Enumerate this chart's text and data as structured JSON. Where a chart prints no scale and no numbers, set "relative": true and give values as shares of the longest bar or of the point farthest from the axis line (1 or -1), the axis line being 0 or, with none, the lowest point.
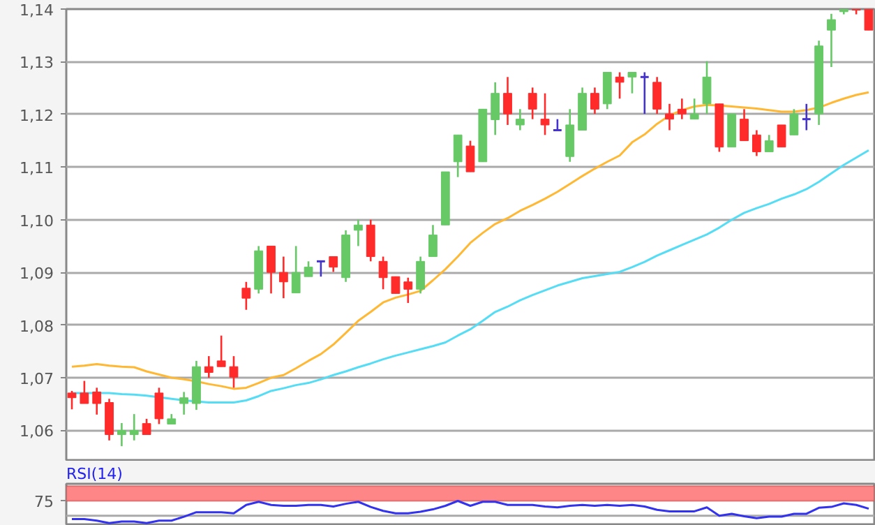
{
  "chart_data": [
    {
      "type": "candlestick",
      "categories": [
        null,
        null,
        null,
        null,
        null,
        null,
        null,
        null,
        null,
        null,
        null,
        null,
        null,
        null,
        null,
        null,
        null,
        null,
        null,
        null,
        null,
        null,
        null,
        null,
        null,
        null,
        null,
        null,
        null,
        null,
        null,
        null,
        null,
        null,
        null,
        null,
        null,
        null,
        null,
        null,
        null,
        null,
        null,
        null,
        null,
        null,
        null,
        null,
        null,
        null,
        null,
        null,
        null,
        null,
        null,
        null,
        null,
        null,
        null,
        null,
        null,
        null,
        null,
        null,
        null
      ],
      "ohlc": [
        [
          1.0671,
          1.0675,
          1.064,
          1.0662
        ],
        [
          1.0671,
          1.0694,
          1.0651,
          1.0651
        ],
        [
          1.0673,
          1.0681,
          1.063,
          1.0651
        ],
        [
          1.0653,
          1.066,
          1.0581,
          1.0592
        ],
        [
          1.0592,
          1.0614,
          1.057,
          1.06
        ],
        [
          1.0592,
          1.0631,
          1.0581,
          1.06
        ],
        [
          1.0613,
          1.0622,
          1.0592,
          1.0592
        ],
        [
          1.0671,
          1.0681,
          1.0612,
          1.0622
        ],
        [
          1.0612,
          1.0631,
          1.0612,
          1.0622
        ],
        [
          1.0651,
          1.0673,
          1.063,
          1.0662
        ],
        [
          1.0651,
          1.0732,
          1.0639,
          1.0721
        ],
        [
          1.0721,
          1.0741,
          1.07,
          1.071
        ],
        [
          1.0732,
          1.078,
          1.0721,
          1.0721
        ],
        [
          1.0721,
          1.0741,
          1.0681,
          1.0701
        ],
        [
          1.087,
          1.0882,
          1.0829,
          1.0851
        ],
        [
          1.0868,
          1.095,
          1.086,
          1.0941
        ],
        [
          1.095,
          1.095,
          1.086,
          1.09
        ],
        [
          1.09,
          1.093,
          1.0851,
          1.0882
        ],
        [
          1.0861,
          1.095,
          1.0861,
          1.09
        ],
        [
          1.0892,
          1.0921,
          1.0892,
          1.091
        ],
        [
          1.0921,
          1.0921,
          1.0892,
          1.0921
        ],
        [
          1.093,
          1.093,
          1.0901,
          1.091
        ],
        [
          1.089,
          1.098,
          1.0882,
          1.0971
        ],
        [
          1.098,
          1.1,
          1.095,
          1.099
        ],
        [
          1.099,
          1.1,
          1.0921,
          1.093
        ],
        [
          1.0921,
          1.093,
          1.0868,
          1.089
        ],
        [
          1.0892,
          1.0892,
          1.086,
          1.086
        ],
        [
          1.0882,
          1.089,
          1.0842,
          1.0868
        ],
        [
          1.0868,
          1.093,
          1.086,
          1.0921
        ],
        [
          1.093,
          1.099,
          1.093,
          1.0971
        ],
        [
          1.099,
          1.1091,
          1.099,
          1.1091
        ],
        [
          1.111,
          1.1161,
          1.1081,
          1.1161
        ],
        [
          1.114,
          1.115,
          1.1091,
          1.1091
        ],
        [
          1.111,
          1.121,
          1.111,
          1.121
        ],
        [
          1.119,
          1.1261,
          1.1161,
          1.124
        ],
        [
          1.124,
          1.1271,
          1.118,
          1.1201
        ],
        [
          1.118,
          1.121,
          1.117,
          1.1191
        ],
        [
          1.124,
          1.1251,
          1.1191,
          1.121
        ],
        [
          1.1191,
          1.124,
          1.1161,
          1.118
        ],
        [
          1.117,
          1.1191,
          1.117,
          1.117
        ],
        [
          1.112,
          1.121,
          1.111,
          1.118
        ],
        [
          1.117,
          1.1251,
          1.117,
          1.124
        ],
        [
          1.124,
          1.1251,
          1.1201,
          1.121
        ],
        [
          1.122,
          1.128,
          1.121,
          1.128
        ],
        [
          1.1271,
          1.128,
          1.123,
          1.1261
        ],
        [
          1.1271,
          1.128,
          1.124,
          1.128
        ],
        [
          1.1271,
          1.128,
          1.1201,
          1.1271
        ],
        [
          1.1261,
          1.1271,
          1.1201,
          1.121
        ],
        [
          1.1201,
          1.122,
          1.117,
          1.1191
        ],
        [
          1.121,
          1.123,
          1.1191,
          1.1201
        ],
        [
          1.1191,
          1.123,
          1.1191,
          1.1201
        ],
        [
          1.122,
          1.1301,
          1.1201,
          1.1271
        ],
        [
          1.122,
          1.122,
          1.1129,
          1.1138
        ],
        [
          1.1138,
          1.1201,
          1.1138,
          1.1201
        ],
        [
          1.1191,
          1.121,
          1.115,
          1.115
        ],
        [
          1.1161,
          1.117,
          1.1121,
          1.1129
        ],
        [
          1.1129,
          1.1161,
          1.1129,
          1.115
        ],
        [
          1.118,
          1.118,
          1.1138,
          1.1138
        ],
        [
          1.1161,
          1.121,
          1.1161,
          1.1201
        ],
        [
          1.1191,
          1.122,
          1.117,
          1.1191
        ],
        [
          1.1201,
          1.134,
          1.118,
          1.133
        ],
        [
          1.136,
          1.1391,
          1.129,
          1.138
        ],
        [
          1.1395,
          1.14,
          1.139,
          1.14
        ],
        [
          1.14,
          1.14,
          1.139,
          1.1398
        ],
        [
          1.14,
          1.14,
          1.136,
          1.136
        ]
      ],
      "colors": [
        "#ff2a2a",
        "#ff2a2a",
        "#ff2a2a",
        "#ff2a2a",
        "#66c966",
        "#66c966",
        "#ff2a2a",
        "#ff2a2a",
        "#66c966",
        "#66c966",
        "#66c966",
        "#ff2a2a",
        "#ff2a2a",
        "#ff2a2a",
        "#ff2a2a",
        "#66c966",
        "#ff2a2a",
        "#ff2a2a",
        "#66c966",
        "#66c966",
        "#4433cc",
        "#ff2a2a",
        "#66c966",
        "#66c966",
        "#ff2a2a",
        "#ff2a2a",
        "#ff2a2a",
        "#ff2a2a",
        "#66c966",
        "#66c966",
        "#66c966",
        "#66c966",
        "#ff2a2a",
        "#66c966",
        "#66c966",
        "#ff2a2a",
        "#66c966",
        "#ff2a2a",
        "#ff2a2a",
        "#4433cc",
        "#66c966",
        "#66c966",
        "#ff2a2a",
        "#66c966",
        "#ff2a2a",
        "#66c966",
        "#4433cc",
        "#ff2a2a",
        "#ff2a2a",
        "#ff2a2a",
        "#66c966",
        "#66c966",
        "#ff2a2a",
        "#66c966",
        "#ff2a2a",
        "#ff2a2a",
        "#66c966",
        "#ff2a2a",
        "#66c966",
        "#4433cc",
        "#66c966",
        "#66c966",
        "#66c966",
        "#ff2a2a",
        "#ff2a2a"
      ],
      "series": [
        {
          "type": "line",
          "color": "#ffb833",
          "values": [
            1.0721,
            1.0723,
            1.0726,
            1.0723,
            1.0721,
            1.072,
            1.0712,
            1.0706,
            1.07,
            1.0697,
            1.0693,
            1.0688,
            1.0684,
            1.0679,
            1.0681,
            1.069,
            1.07,
            1.0705,
            1.0718,
            1.0732,
            1.0745,
            1.0763,
            1.0785,
            1.0808,
            1.0825,
            1.0843,
            1.0852,
            1.0858,
            1.0865,
            1.0885,
            1.0906,
            1.093,
            1.0956,
            1.0975,
            1.0992,
            1.1003,
            1.1017,
            1.1028,
            1.104,
            1.1053,
            1.1068,
            1.1083,
            1.1097,
            1.111,
            1.1122,
            1.1147,
            1.1162,
            1.1182,
            1.1198,
            1.1208,
            1.1215,
            1.1218,
            1.1217,
            1.1215,
            1.1213,
            1.1211,
            1.1208,
            1.1205,
            1.1205,
            1.1208,
            1.1213,
            1.1222,
            1.123,
            1.1237,
            1.1242
          ]
        },
        {
          "type": "line",
          "color": "#55ddf5",
          "values": [
            1.0671,
            1.0671,
            1.0671,
            1.0671,
            1.0669,
            1.0668,
            1.0666,
            1.0663,
            1.066,
            1.0657,
            1.0655,
            1.0653,
            1.0653,
            1.0653,
            1.0657,
            1.0665,
            1.0675,
            1.068,
            1.0686,
            1.069,
            1.0697,
            1.0705,
            1.0712,
            1.072,
            1.0727,
            1.0735,
            1.0742,
            1.0748,
            1.0754,
            1.076,
            1.0767,
            1.078,
            1.0792,
            1.0808,
            1.0825,
            1.0835,
            1.0847,
            1.0857,
            1.0866,
            1.0875,
            1.0882,
            1.0889,
            1.0893,
            1.0897,
            1.0901,
            1.091,
            1.092,
            1.0932,
            1.0942,
            1.0952,
            1.0962,
            1.0972,
            1.0985,
            1.1,
            1.1013,
            1.1022,
            1.103,
            1.104,
            1.1048,
            1.1058,
            1.1072,
            1.1088,
            1.1104,
            1.1118,
            1.1132
          ]
        }
      ],
      "ylim": [
        1.0541,
        1.14
      ],
      "yticks": [
        {
          "value": 1.06,
          "label": "1,06"
        },
        {
          "value": 1.07,
          "label": "1,07"
        },
        {
          "value": 1.08,
          "label": "1,08"
        },
        {
          "value": 1.09,
          "label": "1,09"
        },
        {
          "value": 1.1,
          "label": "1,10"
        },
        {
          "value": 1.11,
          "label": "1,11"
        },
        {
          "value": 1.12,
          "label": "1,12"
        },
        {
          "value": 1.13,
          "label": "1,13"
        },
        {
          "value": 1.14,
          "label": "1,14"
        }
      ],
      "grid": "y",
      "tick_labels": "y"
    },
    {
      "type": "line",
      "title": "RSI(14)",
      "categories": [
        null,
        null,
        null,
        null,
        null,
        null,
        null,
        null,
        null,
        null,
        null,
        null,
        null,
        null,
        null,
        null,
        null,
        null,
        null,
        null,
        null,
        null,
        null,
        null,
        null,
        null,
        null,
        null,
        null,
        null,
        null,
        null,
        null,
        null,
        null,
        null,
        null,
        null,
        null,
        null,
        null,
        null,
        null,
        null,
        null,
        null,
        null,
        null,
        null,
        null,
        null,
        null,
        null,
        null,
        null,
        null,
        null,
        null,
        null,
        null,
        null,
        null,
        null,
        null,
        null
      ],
      "relative": true,
      "series": [
        {
          "color": "#3333ee",
          "values": [
            0.18,
            0.18,
            0.11,
            0,
            0.07,
            0.07,
            0,
            0.11,
            0.11,
            0.29,
            0.49,
            0.49,
            0.49,
            0.44,
            0.82,
            0.96,
            0.82,
            0.78,
            0.78,
            0.82,
            0.82,
            0.75,
            0.87,
            0.96,
            0.73,
            0.55,
            0.44,
            0.44,
            0.51,
            0.62,
            0.78,
            1,
            0.78,
            0.96,
            0.96,
            0.82,
            0.82,
            0.82,
            0.75,
            0.71,
            0.78,
            0.82,
            0.78,
            0.82,
            0.78,
            0.82,
            0.75,
            0.6,
            0.53,
            0.53,
            0.53,
            0.71,
            0.33,
            0.42,
            0.31,
            0.22,
            0.29,
            0.29,
            0.42,
            0.42,
            0.69,
            0.73,
            0.89,
            0.82,
            0.65
          ]
        }
      ],
      "annotations": [
        "75"
      ],
      "ref_lines": [
        {
          "axis": "y",
          "value": 0.33,
          "color": "#aaaaaa"
        }
      ],
      "bands": [
        {
          "axis": "y",
          "from": 1,
          "to": 1.67,
          "color": "#ff8080"
        }
      ],
      "tick_labels": false
    }
  ]
}
